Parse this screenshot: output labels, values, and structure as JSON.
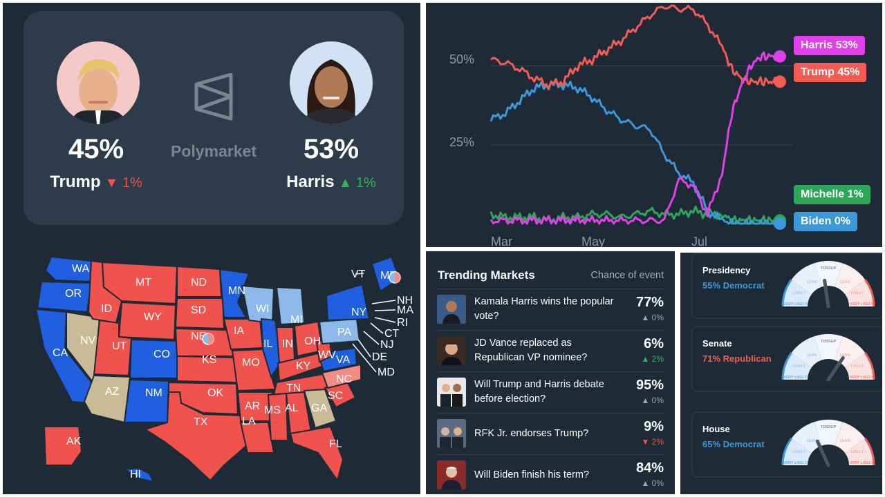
{
  "odds": {
    "trump": {
      "pct": "45%",
      "name": "Trump",
      "change": "▼ 1%"
    },
    "harris": {
      "pct": "53%",
      "name": "Harris",
      "change": "▲ 1%"
    },
    "brand": "Polymarket"
  },
  "map": {
    "states": [
      {
        "abbr": "WA",
        "party": "D"
      },
      {
        "abbr": "OR",
        "party": "D"
      },
      {
        "abbr": "CA",
        "party": "D"
      },
      {
        "abbr": "NV",
        "party": "T"
      },
      {
        "abbr": "ID",
        "party": "R"
      },
      {
        "abbr": "MT",
        "party": "R"
      },
      {
        "abbr": "WY",
        "party": "R"
      },
      {
        "abbr": "UT",
        "party": "R"
      },
      {
        "abbr": "AZ",
        "party": "T"
      },
      {
        "abbr": "CO",
        "party": "D"
      },
      {
        "abbr": "NM",
        "party": "D"
      },
      {
        "abbr": "ND",
        "party": "R"
      },
      {
        "abbr": "SD",
        "party": "R"
      },
      {
        "abbr": "NE",
        "party": "R"
      },
      {
        "abbr": "KS",
        "party": "R"
      },
      {
        "abbr": "OK",
        "party": "R"
      },
      {
        "abbr": "TX",
        "party": "R"
      },
      {
        "abbr": "MN",
        "party": "D"
      },
      {
        "abbr": "IA",
        "party": "R"
      },
      {
        "abbr": "MO",
        "party": "R"
      },
      {
        "abbr": "AR",
        "party": "R"
      },
      {
        "abbr": "LA",
        "party": "R"
      },
      {
        "abbr": "WI",
        "party": "L"
      },
      {
        "abbr": "IL",
        "party": "D"
      },
      {
        "abbr": "MI",
        "party": "L"
      },
      {
        "abbr": "IN",
        "party": "R"
      },
      {
        "abbr": "OH",
        "party": "R"
      },
      {
        "abbr": "KY",
        "party": "R"
      },
      {
        "abbr": "TN",
        "party": "R"
      },
      {
        "abbr": "MS",
        "party": "R"
      },
      {
        "abbr": "AL",
        "party": "R"
      },
      {
        "abbr": "GA",
        "party": "T"
      },
      {
        "abbr": "FL",
        "party": "R"
      },
      {
        "abbr": "SC",
        "party": "R"
      },
      {
        "abbr": "NC",
        "party": "LR"
      },
      {
        "abbr": "VA",
        "party": "D"
      },
      {
        "abbr": "WV",
        "party": "R"
      },
      {
        "abbr": "PA",
        "party": "L"
      },
      {
        "abbr": "NY",
        "party": "D"
      },
      {
        "abbr": "ME",
        "party": "D"
      },
      {
        "abbr": "AK",
        "party": "R"
      },
      {
        "abbr": "HI",
        "party": "D"
      }
    ],
    "callouts": [
      "VT",
      "NH",
      "MA",
      "RI",
      "CT",
      "NJ",
      "DE",
      "MD"
    ]
  },
  "chart_data": {
    "type": "line",
    "title": "",
    "x_ticks": [
      "Mar",
      "May",
      "Jul"
    ],
    "y_ticks": [
      "50%",
      "25%"
    ],
    "ylim": [
      0,
      0.7
    ],
    "x": [
      0,
      6,
      12,
      18,
      24,
      30,
      36,
      42,
      48,
      54,
      60,
      66,
      72,
      78,
      84,
      90,
      96,
      100,
      104,
      108,
      112,
      116,
      120
    ],
    "series": [
      {
        "name": "Trump",
        "label": "Trump 45%",
        "color": "#f25c54",
        "values": [
          0.52,
          0.51,
          0.49,
          0.46,
          0.44,
          0.45,
          0.5,
          0.52,
          0.55,
          0.58,
          0.62,
          0.66,
          0.69,
          0.68,
          0.68,
          0.63,
          0.56,
          0.49,
          0.46,
          0.45,
          0.45,
          0.45,
          0.45
        ]
      },
      {
        "name": "Harris",
        "label": "Harris 53%",
        "color": "#e040e8",
        "values": [
          0.01,
          0.01,
          0.01,
          0.01,
          0.01,
          0.01,
          0.01,
          0.01,
          0.01,
          0.01,
          0.01,
          0.01,
          0.01,
          0.14,
          0.12,
          0.03,
          0.16,
          0.35,
          0.44,
          0.5,
          0.53,
          0.53,
          0.53
        ]
      },
      {
        "name": "Biden",
        "label": "Biden 0%",
        "color": "#3b98d9",
        "values": [
          0.33,
          0.35,
          0.39,
          0.43,
          0.44,
          0.44,
          0.43,
          0.4,
          0.36,
          0.33,
          0.31,
          0.3,
          0.22,
          0.16,
          0.13,
          0.04,
          0.01,
          0.0,
          0.0,
          0.0,
          0.0,
          0.0,
          0.0
        ]
      },
      {
        "name": "Michelle",
        "label": "Michelle 1%",
        "color": "#2fa55a",
        "values": [
          0.03,
          0.02,
          0.02,
          0.02,
          0.01,
          0.02,
          0.02,
          0.03,
          0.03,
          0.02,
          0.03,
          0.04,
          0.03,
          0.03,
          0.04,
          0.03,
          0.03,
          0.01,
          0.01,
          0.01,
          0.01,
          0.01,
          0.01
        ]
      }
    ]
  },
  "trending": {
    "title": "Trending Markets",
    "subtitle": "Chance of event",
    "items": [
      {
        "q": "Kamala Harris wins the popular vote?",
        "v": "77%",
        "d": "▲ 0%",
        "dir": "neutral"
      },
      {
        "q": "JD Vance replaced as Republican VP nominee?",
        "v": "6%",
        "d": "▲ 2%",
        "dir": "up"
      },
      {
        "q": "Will Trump and Harris debate before election?",
        "v": "95%",
        "d": "▲ 0%",
        "dir": "neutral"
      },
      {
        "q": "RFK Jr. endorses Trump?",
        "v": "9%",
        "d": "▼ 2%",
        "dir": "down"
      },
      {
        "q": "Will Biden finish his term?",
        "v": "84%",
        "d": "▲ 0%",
        "dir": "neutral"
      }
    ]
  },
  "gauges": [
    {
      "title": "Presidency",
      "sub": "55% Democrat",
      "color": "#3b98d9",
      "value": 0.55,
      "party": "D"
    },
    {
      "title": "Senate",
      "sub": "71% Republican",
      "color": "#f25c54",
      "value": 0.71,
      "party": "R"
    },
    {
      "title": "House",
      "sub": "65% Democrat",
      "color": "#3b98d9",
      "value": 0.65,
      "party": "D"
    }
  ],
  "gauge_labels": {
    "tossup": "TOSSUP",
    "lean": "LEAN",
    "likely": "LIKELY",
    "very_likely": "VERY LIKELY"
  }
}
